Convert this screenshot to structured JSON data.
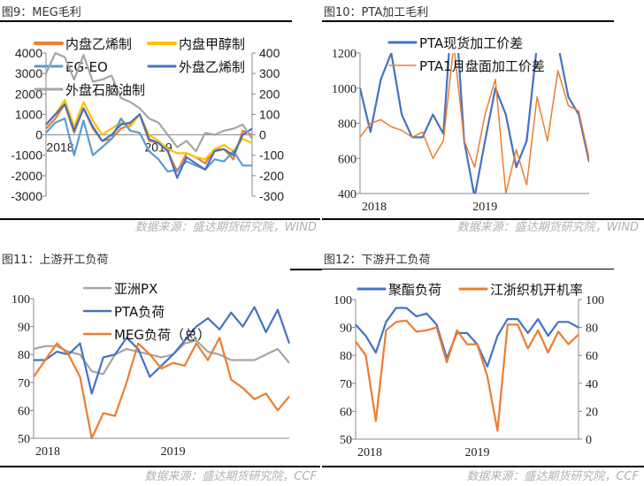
{
  "charts_meta": {
    "source_wind": "数据来源：盛达期货研究院，WIND",
    "source_ccf": "数据来源：盛达期货研究院，CCF"
  },
  "chart_data": [
    {
      "id": "c9",
      "type": "line",
      "title": "图9：MEG毛利",
      "source": "数据来源：盛达期货研究院，WIND",
      "x": [
        "2018-01",
        "2018-02",
        "2018-03",
        "2018-04",
        "2018-05",
        "2018-06",
        "2018-07",
        "2018-08",
        "2018-09",
        "2018-10",
        "2018-11",
        "2018-12",
        "2019-01",
        "2019-02",
        "2019-03",
        "2019-04",
        "2019-05",
        "2019-06",
        "2019-07",
        "2019-08",
        "2019-09",
        "2019-10",
        "2019-11"
      ],
      "x_ticks": [
        "2018",
        "2019"
      ],
      "y_left": {
        "range": [
          -3000,
          4000
        ],
        "ticks": [
          4000,
          3000,
          2000,
          1000,
          0,
          -1000,
          -2000,
          -3000
        ]
      },
      "y_right": {
        "range": [
          -300,
          400
        ],
        "ticks": [
          400,
          300,
          200,
          100,
          0,
          -100,
          -200,
          -300
        ]
      },
      "grid": false,
      "legend_placement": "top",
      "series": [
        {
          "name": "内盘乙烯制",
          "axis": "left",
          "color": "#ED7D31",
          "values": [
            300,
            800,
            1500,
            100,
            1300,
            300,
            -300,
            -200,
            300,
            500,
            1000,
            -300,
            -400,
            -800,
            -1800,
            -900,
            -1100,
            -1400,
            -700,
            -700,
            -1200,
            200,
            0
          ]
        },
        {
          "name": "内盘甲醇制",
          "axis": "left",
          "color": "#FFC000",
          "values": [
            500,
            1000,
            1700,
            400,
            1600,
            700,
            0,
            300,
            600,
            400,
            1000,
            0,
            -300,
            -700,
            -900,
            -900,
            -1100,
            -1200,
            -700,
            -500,
            -800,
            -200,
            -400
          ]
        },
        {
          "name": "EG-EO",
          "axis": "left",
          "color": "#5B9BD5",
          "values": [
            100,
            600,
            800,
            -1000,
            700,
            -1000,
            -600,
            -200,
            800,
            200,
            100,
            -800,
            -1200,
            -1800,
            -1700,
            -1300,
            -1500,
            -1700,
            -1200,
            -1300,
            -800,
            -1500,
            -1500
          ]
        },
        {
          "name": "外盘乙烯制",
          "axis": "right",
          "color": "#4472C4",
          "values": [
            50,
            100,
            150,
            20,
            130,
            40,
            -30,
            0,
            50,
            60,
            100,
            -20,
            -40,
            -80,
            -210,
            -110,
            -140,
            -170,
            -80,
            -70,
            -100,
            0,
            30
          ]
        },
        {
          "name": "外盘石脑油制",
          "axis": "right",
          "color": "#A5A5A5",
          "values": [
            300,
            400,
            380,
            270,
            390,
            260,
            270,
            290,
            180,
            160,
            130,
            80,
            60,
            0,
            -60,
            -30,
            -80,
            10,
            0,
            20,
            30,
            50,
            -20
          ]
        }
      ]
    },
    {
      "id": "c10",
      "type": "line",
      "title": "图10：PTA加工毛利",
      "source": "数据来源：盛达期货研究院，WIND",
      "x": [
        "2018-01",
        "2018-02",
        "2018-03",
        "2018-04",
        "2018-05",
        "2018-06",
        "2018-07",
        "2018-08",
        "2018-09",
        "2018-10",
        "2018-11",
        "2018-12",
        "2019-01",
        "2019-02",
        "2019-03",
        "2019-04",
        "2019-05",
        "2019-06",
        "2019-07",
        "2019-08",
        "2019-09",
        "2019-10",
        "2019-11"
      ],
      "x_ticks": [
        "2018",
        "2019"
      ],
      "y_left": {
        "range": [
          400,
          1200
        ],
        "ticks": [
          1200,
          1000,
          800,
          600,
          400
        ]
      },
      "grid": false,
      "legend_placement": "top",
      "series": [
        {
          "name": "PTA现货加工价差",
          "axis": "left",
          "color": "#4472C4",
          "values": [
            1000,
            750,
            1050,
            1200,
            850,
            720,
            720,
            850,
            740,
            1600,
            700,
            380,
            700,
            1000,
            850,
            550,
            700,
            1250,
            1300,
            1250,
            950,
            850,
            580
          ]
        },
        {
          "name": "PTA1月盘面加工价差",
          "axis": "left",
          "color": "#ED7D31",
          "values": [
            720,
            800,
            820,
            780,
            760,
            720,
            750,
            600,
            700,
            1250,
            700,
            550,
            850,
            1050,
            400,
            650,
            450,
            950,
            700,
            1100,
            900,
            870,
            600
          ]
        }
      ]
    },
    {
      "id": "c11",
      "type": "line",
      "title": "图11：上游开工负荷",
      "source": "数据来源：盛达期货研究院，CCF",
      "x": [
        "2018-01",
        "2018-02",
        "2018-03",
        "2018-04",
        "2018-05",
        "2018-06",
        "2018-07",
        "2018-08",
        "2018-09",
        "2018-10",
        "2018-11",
        "2018-12",
        "2019-01",
        "2019-02",
        "2019-03",
        "2019-04",
        "2019-05",
        "2019-06",
        "2019-07",
        "2019-08",
        "2019-09",
        "2019-10",
        "2019-11"
      ],
      "x_ticks": [
        "2018",
        "2019"
      ],
      "y_left": {
        "range": [
          50,
          100
        ],
        "ticks": [
          100,
          90,
          80,
          70,
          60,
          50
        ]
      },
      "grid": false,
      "legend_placement": "top",
      "series": [
        {
          "name": "亚洲PX",
          "axis": "left",
          "color": "#A5A5A5",
          "values": [
            82,
            83,
            83,
            81,
            80,
            74,
            73,
            80,
            82,
            81,
            80,
            79,
            80,
            84,
            85,
            81,
            80,
            78,
            78,
            78,
            80,
            82,
            77
          ]
        },
        {
          "name": "PTA负荷",
          "axis": "left",
          "color": "#4472C4",
          "values": [
            78,
            78,
            81,
            80,
            84,
            66,
            79,
            80,
            86,
            82,
            72,
            76,
            80,
            85,
            90,
            93,
            89,
            95,
            90,
            97,
            88,
            96,
            84
          ]
        },
        {
          "name": "MEG负荷（总）",
          "axis": "left",
          "color": "#ED7D31",
          "values": [
            72,
            78,
            84,
            80,
            72,
            50,
            59,
            58,
            70,
            84,
            80,
            75,
            77,
            76,
            84,
            78,
            86,
            71,
            68,
            64,
            66,
            60,
            65
          ]
        }
      ]
    },
    {
      "id": "c12",
      "type": "line",
      "title": "图12：下游开工负荷",
      "source": "数据来源：盛达期货研究院，CCF",
      "x": [
        "2018-01",
        "2018-02",
        "2018-03",
        "2018-04",
        "2018-05",
        "2018-06",
        "2018-07",
        "2018-08",
        "2018-09",
        "2018-10",
        "2018-11",
        "2018-12",
        "2019-01",
        "2019-02",
        "2019-03",
        "2019-04",
        "2019-05",
        "2019-06",
        "2019-07",
        "2019-08",
        "2019-09",
        "2019-10",
        "2019-11"
      ],
      "x_ticks": [
        "2018",
        "2019"
      ],
      "y_left": {
        "range": [
          50,
          100
        ],
        "ticks": [
          100,
          90,
          80,
          70,
          60,
          50
        ]
      },
      "y_right": {
        "range": [
          0,
          100
        ],
        "ticks": [
          100,
          80,
          60,
          40,
          20,
          0
        ]
      },
      "grid": false,
      "legend_placement": "top",
      "series": [
        {
          "name": "聚酯负荷",
          "axis": "left",
          "color": "#4472C4",
          "values": [
            91,
            87,
            81,
            92,
            97,
            97,
            94,
            95,
            91,
            79,
            88,
            88,
            84,
            76,
            87,
            93,
            93,
            88,
            93,
            87,
            92,
            92,
            90
          ]
        },
        {
          "name": "江浙织机开机率",
          "axis": "right",
          "color": "#ED7D31",
          "values": [
            70,
            60,
            13,
            78,
            84,
            85,
            77,
            78,
            80,
            55,
            78,
            68,
            68,
            45,
            6,
            82,
            82,
            65,
            78,
            62,
            77,
            68,
            75
          ]
        }
      ]
    }
  ]
}
